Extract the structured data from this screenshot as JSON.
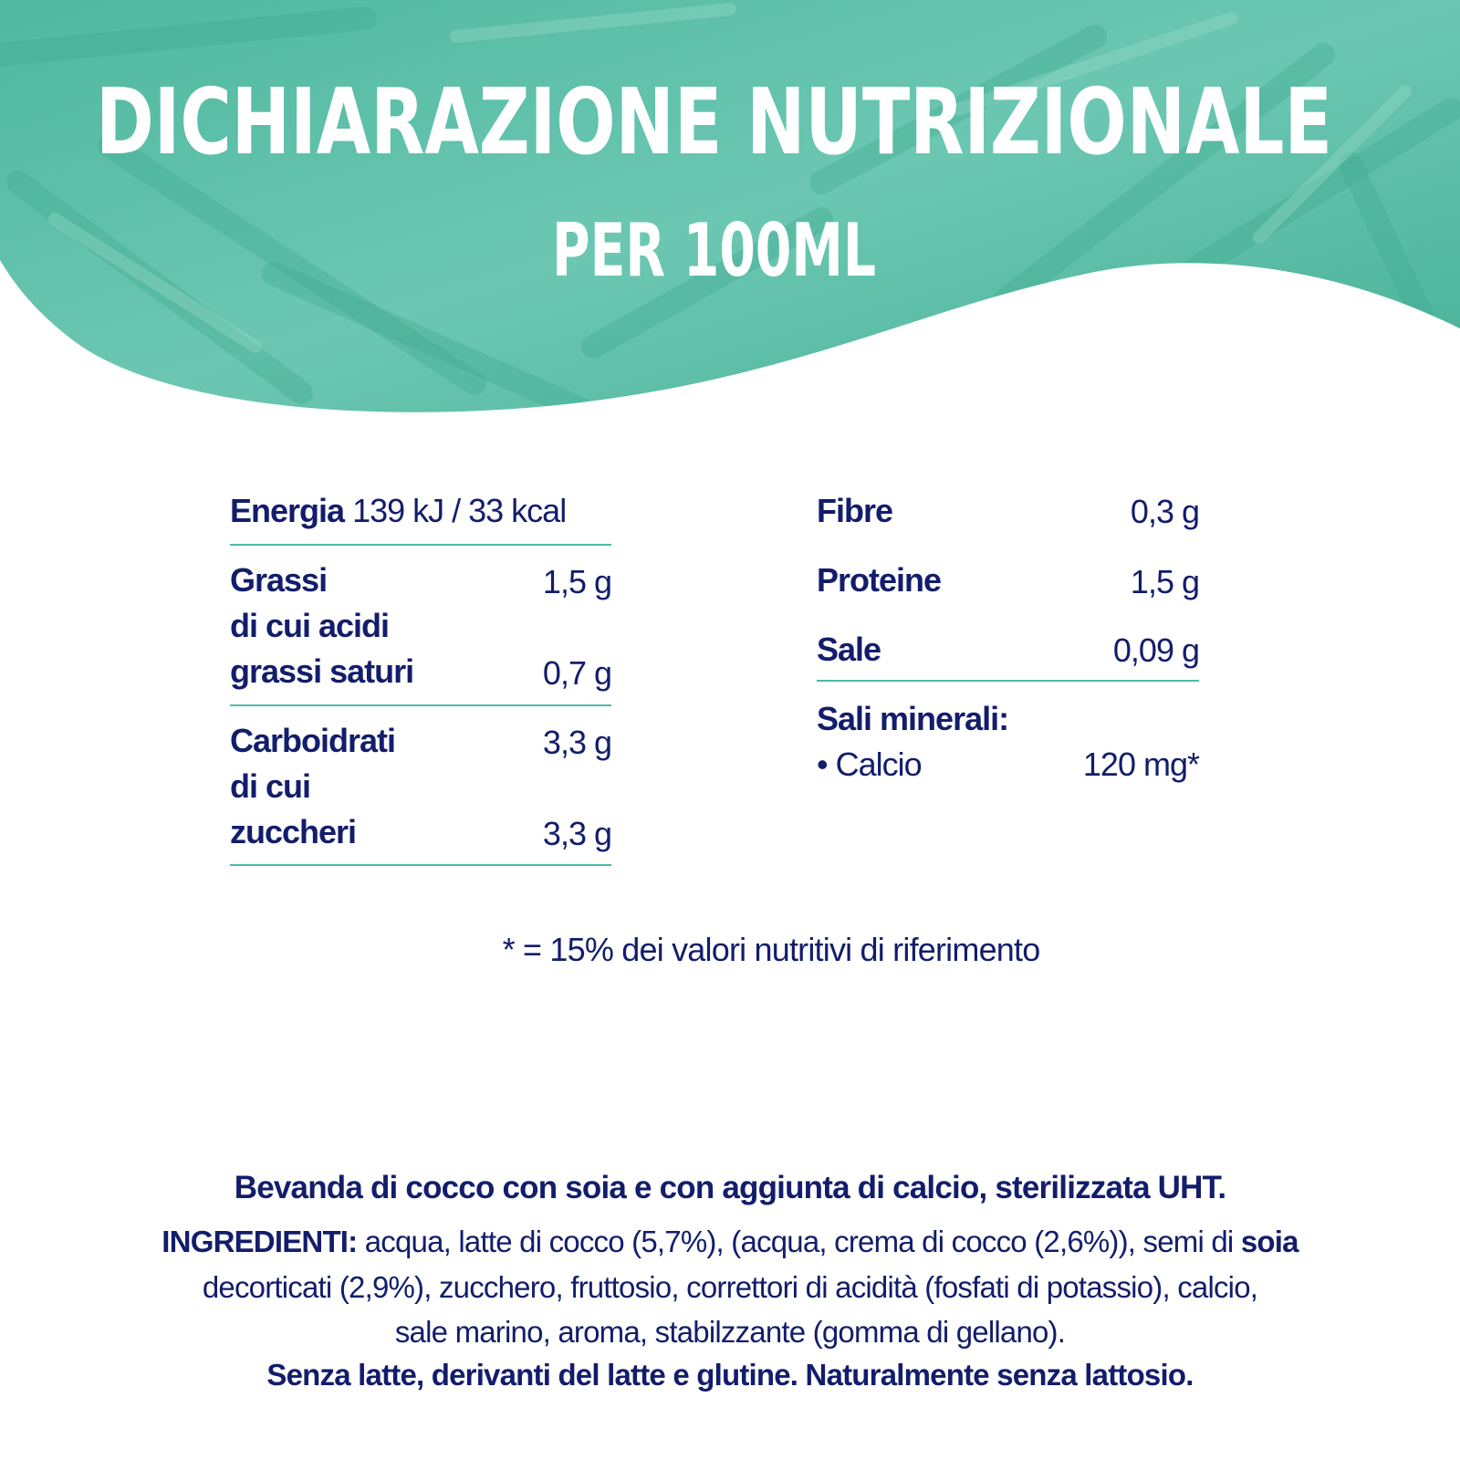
{
  "header": {
    "title": "DICHIARAZIONE NUTRIZIONALE",
    "subtitle": "PER 100ML",
    "background_color": "#5cbfa9"
  },
  "nutrition": {
    "energy": {
      "label": "Energia",
      "value": "139 kJ / 33 kcal"
    },
    "fat": {
      "label": "Grassi",
      "value": "1,5 g"
    },
    "saturates": {
      "label_line1": "di cui acidi",
      "label_line2": "grassi saturi",
      "value": "0,7 g"
    },
    "carbs": {
      "label": "Carboidrati",
      "value": "3,3 g"
    },
    "sugars": {
      "label_line1": "di cui",
      "label_line2": "zuccheri",
      "value": "3,3 g"
    },
    "fibre": {
      "label": "Fibre",
      "value": "0,3 g"
    },
    "protein": {
      "label": "Proteine",
      "value": "1,5 g"
    },
    "salt": {
      "label": "Sale",
      "value": "0,09 g"
    },
    "minerals": {
      "label": "Sali minerali:",
      "calcium_label": "• Calcio",
      "calcium_value": "120 mg*"
    }
  },
  "footnote": "* = 15% dei valori nutritivi di riferimento",
  "product_description": "Bevanda di cocco con soia e con aggiunta di calcio, sterilizzata UHT.",
  "ingredients": {
    "label": "INGREDIENTI:",
    "line1": " acqua, latte di cocco (5,7%), (acqua, crema di cocco (2,6%)), semi di ",
    "line1_bold": "soia",
    "line2": "decorticati (2,9%), zucchero, fruttosio, correttori di acidità (fosfati di potassio), calcio,",
    "line3": "sale marino, aroma, stabilzzante (gomma di gellano)."
  },
  "allergen_note": "Senza latte, derivanti del latte e glutine. Naturalmente senza lattosio.",
  "colors": {
    "text": "#121d6b",
    "rule": "#4dbba5"
  }
}
